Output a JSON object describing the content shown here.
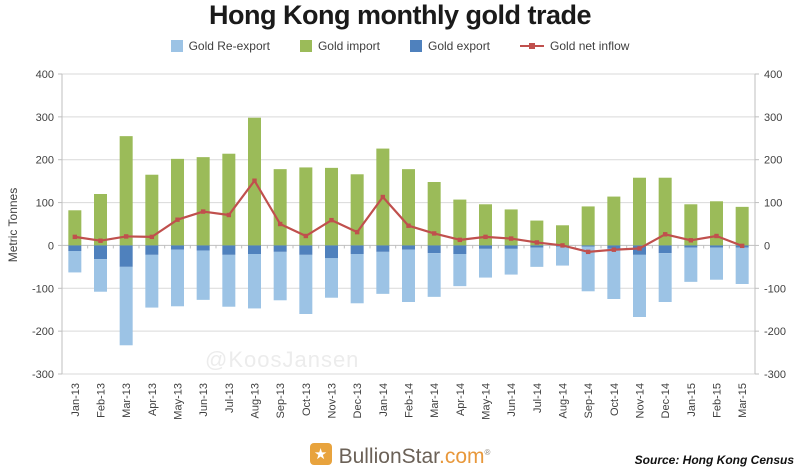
{
  "title": "Hong Kong monthly gold trade",
  "y_axis_title": "Metric Tonnes",
  "watermark": "@KoosJansen",
  "legend": {
    "items": [
      {
        "label": "Gold Re-export",
        "color": "#9cc3e5",
        "type": "box"
      },
      {
        "label": "Gold import",
        "color": "#9bbb59",
        "type": "box"
      },
      {
        "label": "Gold export",
        "color": "#4f81bd",
        "type": "box"
      },
      {
        "label": "Gold net inflow",
        "color": "#c0504d",
        "type": "line"
      }
    ]
  },
  "footer": {
    "brand_name": "BullionStar",
    "brand_tld": ".com",
    "brand_reg": "®",
    "star_icon": "★",
    "brand_icon_color": "#e8a33d",
    "source": "Source: Hong Kong Census"
  },
  "chart_data": {
    "type": "bar",
    "subtype": "stacked bars with overlaid line",
    "title": "Hong Kong monthly gold trade",
    "xlabel": "",
    "ylabel": "Metric Tonnes",
    "ylim": [
      -300,
      400
    ],
    "ytick_interval": 100,
    "grid": true,
    "legend_position": "top",
    "grid_color": "#d9d9d9",
    "axis_color": "#bfbfbf",
    "categories": [
      "Jan-13",
      "Feb-13",
      "Mar-13",
      "Apr-13",
      "May-13",
      "Jun-13",
      "Jul-13",
      "Aug-13",
      "Sep-13",
      "Oct-13",
      "Nov-13",
      "Dec-13",
      "Jan-14",
      "Feb-14",
      "Mar-14",
      "Apr-14",
      "May-14",
      "Jun-14",
      "Jul-14",
      "Aug-14",
      "Sep-14",
      "Oct-14",
      "Nov-14",
      "Dec-14",
      "Jan-15",
      "Feb-15",
      "Mar-15"
    ],
    "series": [
      {
        "name": "Gold Re-export",
        "role": "re_export",
        "type": "bar",
        "color": "#9cc3e5",
        "values": [
          -50,
          -76,
          -183,
          -123,
          -132,
          -115,
          -121,
          -127,
          -113,
          -138,
          -92,
          -115,
          -98,
          -122,
          -102,
          -75,
          -67,
          -60,
          -45,
          -44,
          -104,
          -117,
          -145,
          -114,
          -80,
          -75,
          -85
        ]
      },
      {
        "name": "Gold import",
        "role": "import",
        "type": "bar",
        "color": "#9bbb59",
        "values": [
          82,
          120,
          255,
          165,
          202,
          206,
          214,
          298,
          178,
          182,
          181,
          166,
          226,
          178,
          148,
          107,
          96,
          84,
          58,
          47,
          91,
          114,
          158,
          158,
          96,
          103,
          90
        ]
      },
      {
        "name": "Gold export",
        "role": "export",
        "type": "bar",
        "color": "#4f81bd",
        "values": [
          -13,
          -32,
          -50,
          -22,
          -10,
          -12,
          -22,
          -20,
          -15,
          -22,
          -30,
          -20,
          -15,
          -10,
          -18,
          -20,
          -8,
          -8,
          -5,
          -3,
          -3,
          -8,
          -22,
          -18,
          -5,
          -5,
          -5
        ]
      },
      {
        "name": "Gold net inflow",
        "role": "net",
        "type": "line",
        "color": "#c0504d",
        "values": [
          20,
          11,
          21,
          20,
          60,
          79,
          71,
          151,
          50,
          22,
          59,
          31,
          113,
          46,
          28,
          13,
          20,
          16,
          7,
          0,
          -15,
          -10,
          -7,
          26,
          12,
          22,
          -1
        ]
      }
    ]
  }
}
